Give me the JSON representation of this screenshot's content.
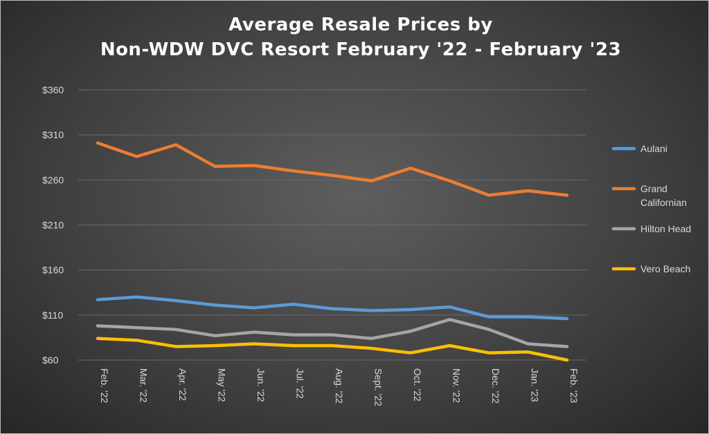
{
  "chart_data": {
    "type": "line",
    "title_line1": "Average Resale Prices by",
    "title_line2": "Non-WDW DVC Resort February '22 - February '23",
    "categories": [
      "Feb. '22",
      "Mar. '22",
      "Apr. '22",
      "May '22",
      "Jun. '22",
      "Jul. '22",
      "Aug. '22",
      "Sept. '22",
      "Oct. '22",
      "Nov. '22",
      "Dec. '22",
      "Jan. '23",
      "Feb. '23"
    ],
    "yticks": [
      "$60",
      "$110",
      "$160",
      "$210",
      "$260",
      "$310",
      "$360"
    ],
    "ylim": [
      60,
      360
    ],
    "grid": true,
    "legend_position": "right",
    "series": [
      {
        "name": "Aulani",
        "color": "#5b9bd5",
        "values": [
          127,
          130,
          126,
          121,
          118,
          122,
          117,
          115,
          116,
          119,
          108,
          108,
          106
        ]
      },
      {
        "name": "Grand Californian",
        "color": "#ed7d31",
        "values": [
          301,
          286,
          299,
          275,
          276,
          270,
          265,
          259,
          273,
          259,
          243,
          248,
          243
        ]
      },
      {
        "name": "Hilton Head",
        "color": "#a5a5a5",
        "values": [
          98,
          96,
          94,
          87,
          91,
          88,
          88,
          84,
          92,
          105,
          94,
          78,
          75
        ]
      },
      {
        "name": "Vero Beach",
        "color": "#ffc000",
        "values": [
          84,
          82,
          75,
          76,
          78,
          76,
          76,
          73,
          68,
          76,
          68,
          69,
          60
        ]
      }
    ]
  }
}
